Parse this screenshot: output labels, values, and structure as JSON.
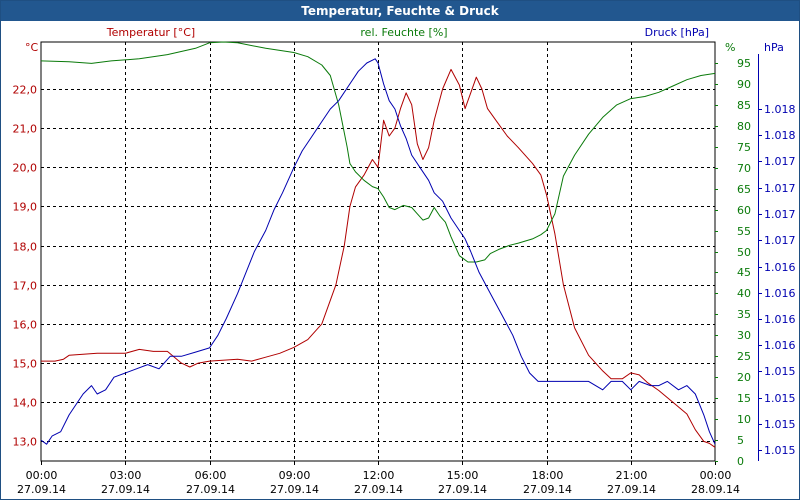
{
  "window": {
    "title": "Temperatur, Feuchte & Druck"
  },
  "colors": {
    "temperature": "#b00000",
    "humidity": "#0a7a0a",
    "pressure": "#0000b0",
    "grid": "#000000",
    "title_bg": "#22578f"
  },
  "chart_data": {
    "type": "line",
    "title": "Temperatur, Feuchte & Druck",
    "grid": true,
    "x": {
      "ticks": [
        {
          "time": "00:00",
          "date": "27.09.14"
        },
        {
          "time": "03:00",
          "date": "27.09.14"
        },
        {
          "time": "06:00",
          "date": "27.09.14"
        },
        {
          "time": "09:00",
          "date": "27.09.14"
        },
        {
          "time": "12:00",
          "date": "27.09.14"
        },
        {
          "time": "15:00",
          "date": "27.09.14"
        },
        {
          "time": "18:00",
          "date": "27.09.14"
        },
        {
          "time": "21:00",
          "date": "27.09.14"
        },
        {
          "time": "00:00",
          "date": "28.09.14"
        }
      ],
      "range_hours": [
        0,
        24
      ]
    },
    "axes": {
      "temperature": {
        "label": "Temperatur [°C]",
        "unit": "°C",
        "range": [
          12.5,
          23.2
        ],
        "ticks": [
          "13,0",
          "14,0",
          "15,0",
          "16,0",
          "17,0",
          "18,0",
          "19,0",
          "20,0",
          "21,0",
          "22,0"
        ],
        "tick_values": [
          13,
          14,
          15,
          16,
          17,
          18,
          19,
          20,
          21,
          22
        ]
      },
      "humidity": {
        "label": "rel. Feuchte [%]",
        "unit": "%",
        "range": [
          0,
          100
        ],
        "ticks": [
          "0",
          "5",
          "10",
          "15",
          "20",
          "25",
          "30",
          "35",
          "40",
          "45",
          "50",
          "55",
          "60",
          "65",
          "70",
          "75",
          "80",
          "85",
          "90",
          "95"
        ],
        "tick_values": [
          0,
          5,
          10,
          15,
          20,
          25,
          30,
          35,
          40,
          45,
          50,
          55,
          60,
          65,
          70,
          75,
          80,
          85,
          90,
          95
        ]
      },
      "pressure": {
        "label": "Druck [hPa]",
        "unit": "hPa",
        "ticks": [
          "1.015",
          "1.015",
          "1.015",
          "1.015",
          "1.016",
          "1.016",
          "1.016",
          "1.016",
          "1.017",
          "1.017",
          "1.017",
          "1.017",
          "1.018",
          "1.018"
        ],
        "tick_fractions": [
          0.026,
          0.088,
          0.151,
          0.214,
          0.276,
          0.339,
          0.401,
          0.464,
          0.527,
          0.589,
          0.652,
          0.715,
          0.777,
          0.84
        ]
      }
    },
    "series": [
      {
        "name": "Temperatur [°C]",
        "axis": "temperature",
        "points": [
          [
            0,
            15.05
          ],
          [
            0.5,
            15.05
          ],
          [
            0.8,
            15.1
          ],
          [
            1,
            15.2
          ],
          [
            2,
            15.25
          ],
          [
            3,
            15.25
          ],
          [
            3.5,
            15.35
          ],
          [
            4,
            15.3
          ],
          [
            4.5,
            15.3
          ],
          [
            5,
            15.0
          ],
          [
            5.3,
            14.9
          ],
          [
            5.6,
            15.0
          ],
          [
            6,
            15.05
          ],
          [
            7,
            15.1
          ],
          [
            7.5,
            15.05
          ],
          [
            8,
            15.15
          ],
          [
            8.5,
            15.25
          ],
          [
            9,
            15.4
          ],
          [
            9.5,
            15.6
          ],
          [
            10,
            16.0
          ],
          [
            10.5,
            17.0
          ],
          [
            10.8,
            18.0
          ],
          [
            11,
            19.0
          ],
          [
            11.2,
            19.5
          ],
          [
            11.5,
            19.8
          ],
          [
            11.8,
            20.2
          ],
          [
            12,
            20.0
          ],
          [
            12.2,
            21.2
          ],
          [
            12.4,
            20.8
          ],
          [
            12.6,
            21.0
          ],
          [
            12.8,
            21.5
          ],
          [
            13,
            21.9
          ],
          [
            13.2,
            21.6
          ],
          [
            13.4,
            20.6
          ],
          [
            13.6,
            20.2
          ],
          [
            13.8,
            20.5
          ],
          [
            14,
            21.2
          ],
          [
            14.3,
            22.0
          ],
          [
            14.6,
            22.5
          ],
          [
            14.9,
            22.1
          ],
          [
            15.1,
            21.5
          ],
          [
            15.3,
            21.9
          ],
          [
            15.5,
            22.3
          ],
          [
            15.7,
            22.0
          ],
          [
            15.9,
            21.5
          ],
          [
            16.2,
            21.2
          ],
          [
            16.6,
            20.8
          ],
          [
            17,
            20.5
          ],
          [
            17.5,
            20.1
          ],
          [
            17.8,
            19.8
          ],
          [
            18,
            19.3
          ],
          [
            18.3,
            18.3
          ],
          [
            18.6,
            17.0
          ],
          [
            19,
            15.9
          ],
          [
            19.5,
            15.2
          ],
          [
            20,
            14.8
          ],
          [
            20.3,
            14.6
          ],
          [
            20.7,
            14.6
          ],
          [
            21,
            14.75
          ],
          [
            21.3,
            14.7
          ],
          [
            21.6,
            14.5
          ],
          [
            22,
            14.3
          ],
          [
            22.5,
            14.0
          ],
          [
            23,
            13.7
          ],
          [
            23.3,
            13.3
          ],
          [
            23.6,
            13.0
          ],
          [
            23.8,
            12.95
          ],
          [
            24,
            12.85
          ]
        ]
      },
      {
        "name": "rel. Feuchte [%]",
        "axis": "humidity",
        "points": [
          [
            0,
            95.5
          ],
          [
            1,
            95.3
          ],
          [
            1.8,
            94.9
          ],
          [
            2.5,
            95.5
          ],
          [
            3.5,
            96.0
          ],
          [
            4.5,
            97.0
          ],
          [
            5.5,
            98.5
          ],
          [
            6,
            99.8
          ],
          [
            6.5,
            100
          ],
          [
            7,
            99.8
          ],
          [
            8,
            98.5
          ],
          [
            9,
            97.5
          ],
          [
            9.5,
            96.5
          ],
          [
            10,
            94.5
          ],
          [
            10.3,
            92
          ],
          [
            10.6,
            85
          ],
          [
            10.9,
            75
          ],
          [
            11,
            71
          ],
          [
            11.2,
            69
          ],
          [
            11.5,
            67
          ],
          [
            11.8,
            65.5
          ],
          [
            12,
            65
          ],
          [
            12.2,
            63
          ],
          [
            12.4,
            60.5
          ],
          [
            12.6,
            60
          ],
          [
            12.9,
            61
          ],
          [
            13.2,
            60.5
          ],
          [
            13.4,
            59
          ],
          [
            13.6,
            57.5
          ],
          [
            13.8,
            58
          ],
          [
            14,
            60.5
          ],
          [
            14.2,
            58.5
          ],
          [
            14.4,
            57
          ],
          [
            14.6,
            53.5
          ],
          [
            14.9,
            49
          ],
          [
            15.2,
            47.5
          ],
          [
            15.5,
            47.5
          ],
          [
            15.8,
            48
          ],
          [
            16,
            49.5
          ],
          [
            16.3,
            50.5
          ],
          [
            16.7,
            51.5
          ],
          [
            17,
            52
          ],
          [
            17.5,
            53
          ],
          [
            17.8,
            54
          ],
          [
            18,
            55
          ],
          [
            18.3,
            59
          ],
          [
            18.6,
            68
          ],
          [
            19,
            73
          ],
          [
            19.5,
            78
          ],
          [
            20,
            82
          ],
          [
            20.5,
            85
          ],
          [
            21,
            86.5
          ],
          [
            21.5,
            87
          ],
          [
            22,
            88
          ],
          [
            22.5,
            89.5
          ],
          [
            23,
            91
          ],
          [
            23.5,
            92
          ],
          [
            24,
            92.5
          ]
        ]
      },
      {
        "name": "Druck [hPa]",
        "axis": "pressure",
        "points": [
          [
            0,
            0.05
          ],
          [
            0.2,
            0.04
          ],
          [
            0.4,
            0.06
          ],
          [
            0.7,
            0.07
          ],
          [
            1,
            0.11
          ],
          [
            1.2,
            0.13
          ],
          [
            1.5,
            0.16
          ],
          [
            1.8,
            0.18
          ],
          [
            2,
            0.16
          ],
          [
            2.3,
            0.17
          ],
          [
            2.6,
            0.2
          ],
          [
            3,
            0.21
          ],
          [
            3.4,
            0.22
          ],
          [
            3.8,
            0.23
          ],
          [
            4.2,
            0.22
          ],
          [
            4.6,
            0.25
          ],
          [
            5,
            0.25
          ],
          [
            5.5,
            0.26
          ],
          [
            6,
            0.27
          ],
          [
            6.3,
            0.3
          ],
          [
            6.6,
            0.34
          ],
          [
            7,
            0.4
          ],
          [
            7.3,
            0.45
          ],
          [
            7.6,
            0.5
          ],
          [
            8,
            0.55
          ],
          [
            8.3,
            0.6
          ],
          [
            8.6,
            0.64
          ],
          [
            9,
            0.7
          ],
          [
            9.3,
            0.74
          ],
          [
            9.6,
            0.77
          ],
          [
            10,
            0.81
          ],
          [
            10.3,
            0.84
          ],
          [
            10.6,
            0.86
          ],
          [
            11,
            0.9
          ],
          [
            11.3,
            0.93
          ],
          [
            11.6,
            0.95
          ],
          [
            11.9,
            0.96
          ],
          [
            12,
            0.95
          ],
          [
            12.2,
            0.9
          ],
          [
            12.4,
            0.86
          ],
          [
            12.6,
            0.84
          ],
          [
            12.8,
            0.8
          ],
          [
            13,
            0.77
          ],
          [
            13.2,
            0.73
          ],
          [
            13.5,
            0.7
          ],
          [
            13.8,
            0.67
          ],
          [
            14,
            0.64
          ],
          [
            14.3,
            0.62
          ],
          [
            14.6,
            0.58
          ],
          [
            14.9,
            0.55
          ],
          [
            15.1,
            0.53
          ],
          [
            15.3,
            0.5
          ],
          [
            15.6,
            0.45
          ],
          [
            16,
            0.4
          ],
          [
            16.4,
            0.35
          ],
          [
            16.8,
            0.3
          ],
          [
            17.1,
            0.25
          ],
          [
            17.4,
            0.21
          ],
          [
            17.7,
            0.19
          ],
          [
            18,
            0.19
          ],
          [
            18.5,
            0.19
          ],
          [
            19,
            0.19
          ],
          [
            19.5,
            0.19
          ],
          [
            20,
            0.17
          ],
          [
            20.3,
            0.19
          ],
          [
            20.7,
            0.19
          ],
          [
            21,
            0.17
          ],
          [
            21.3,
            0.19
          ],
          [
            21.7,
            0.18
          ],
          [
            22,
            0.18
          ],
          [
            22.3,
            0.19
          ],
          [
            22.7,
            0.17
          ],
          [
            23,
            0.18
          ],
          [
            23.3,
            0.16
          ],
          [
            23.6,
            0.11
          ],
          [
            23.8,
            0.07
          ],
          [
            24,
            0.04
          ]
        ]
      }
    ]
  }
}
